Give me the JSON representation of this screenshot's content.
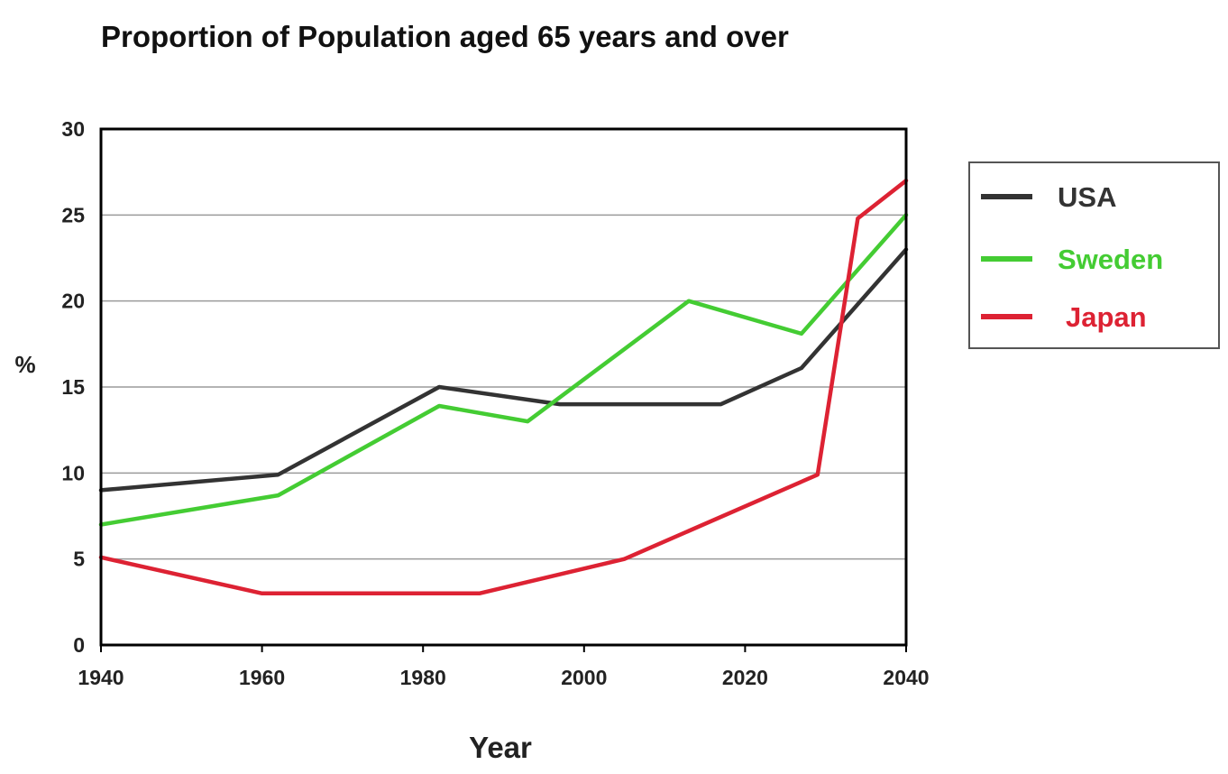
{
  "chart_data": {
    "type": "line",
    "title": "Proportion of Population aged 65 years and over",
    "xlabel": "Year",
    "ylabel": "%",
    "xlim": [
      1940,
      2040
    ],
    "ylim": [
      0,
      30
    ],
    "x_ticks": [
      "1940",
      "1960",
      "1980",
      "2000",
      "2020",
      "2040"
    ],
    "y_ticks": [
      "0",
      "5",
      "10",
      "15",
      "20",
      "25",
      "30"
    ],
    "grid": "horizontal",
    "legend_position": "right",
    "series": [
      {
        "name": "USA",
        "color": "#333333",
        "x": [
          1940,
          1962,
          1982,
          1997,
          2017,
          2027,
          2040
        ],
        "y": [
          9,
          9.9,
          15,
          14,
          14,
          16.1,
          23
        ]
      },
      {
        "name": "Sweden",
        "color": "#44cc33",
        "x": [
          1940,
          1962,
          1982,
          1993,
          2013,
          2027,
          2040
        ],
        "y": [
          7,
          8.7,
          13.9,
          13,
          20,
          18.1,
          25
        ]
      },
      {
        "name": "Japan",
        "color": "#dd2233",
        "x": [
          1940,
          1960,
          1987,
          2005,
          2029,
          2034,
          2040
        ],
        "y": [
          5.1,
          3,
          3,
          5,
          9.9,
          24.8,
          27
        ]
      }
    ]
  }
}
